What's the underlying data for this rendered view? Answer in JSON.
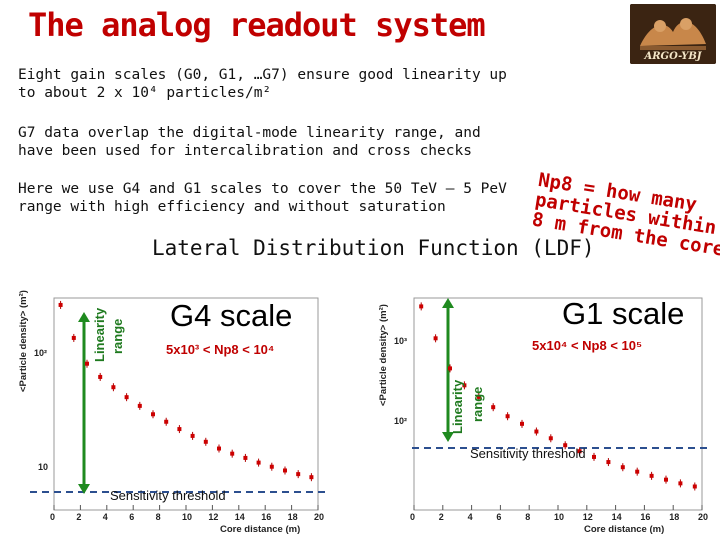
{
  "header": {
    "title": "The analog readout system",
    "logo_text": "ARGO-YBJ"
  },
  "text": {
    "p1": "Eight gain scales (G0, G1, …G7) ensure good linearity up to about 2 x 10⁴ particles/m²",
    "p2": "G7 data overlap the digital-mode linearity range, and have been used for intercalibration and cross checks",
    "p3": "Here we use G4 and G1 scales to cover the 50 TeV – 5 PeV range with high efficiency and without saturation",
    "np8_note": "Np8 = how many\nparticles within\n8 m from the core",
    "ldf_title": "Lateral Distribution Function (LDF)"
  },
  "plots": [
    {
      "scale_title": "G4 scale",
      "range_text": "5x10³ < Np8 < 10⁴",
      "linearity_label_1": "Linearity",
      "linearity_label_2": "range",
      "sensitivity_label": "Sensitivity threshold",
      "ylabel": "<Particle density> (m²)",
      "xlabel": "Core distance (m)",
      "yticks": [
        "10²",
        "10"
      ],
      "xticks": [
        "0",
        "2",
        "4",
        "6",
        "8",
        "10",
        "12",
        "14",
        "16",
        "18",
        "20"
      ]
    },
    {
      "scale_title": "G1 scale",
      "range_text": "5x10⁴ < Np8 < 10⁵",
      "linearity_label_1": "Linearity",
      "linearity_label_2": "range",
      "sensitivity_label": "Sensitivity threshold",
      "ylabel": "<Particle density> (m²)",
      "xlabel": "Core distance (m)",
      "yticks": [
        "10³",
        "10²"
      ],
      "xticks": [
        "0",
        "2",
        "4",
        "6",
        "8",
        "10",
        "12",
        "14",
        "16",
        "18",
        "20"
      ]
    }
  ],
  "chart_data": [
    {
      "type": "scatter",
      "xlabel": "Core distance (m)",
      "ylabel": "<Particle density> (m²)",
      "xlim": [
        0,
        20
      ],
      "log_y": true,
      "ylim": [
        5,
        500
      ],
      "x": [
        0.5,
        1.5,
        2.5,
        3.5,
        4.5,
        5.5,
        6.5,
        7.5,
        8.5,
        9.5,
        10.5,
        11.5,
        12.5,
        13.5,
        14.5,
        15.5,
        16.5,
        17.5,
        18.5,
        19.5
      ],
      "y": [
        430,
        210,
        120,
        90,
        72,
        58,
        48,
        40,
        34,
        29,
        25,
        22,
        19,
        17,
        15.5,
        14,
        12.8,
        11.8,
        10.9,
        10.2
      ]
    },
    {
      "type": "scatter",
      "xlabel": "Core distance (m)",
      "ylabel": "<Particle density> (m²)",
      "xlim": [
        0,
        20
      ],
      "log_y": true,
      "ylim": [
        60,
        6000
      ],
      "x": [
        0.5,
        1.5,
        2.5,
        3.5,
        4.5,
        5.5,
        6.5,
        7.5,
        8.5,
        9.5,
        10.5,
        11.5,
        12.5,
        13.5,
        14.5,
        15.5,
        16.5,
        17.5,
        18.5,
        19.5
      ],
      "y": [
        5000,
        2500,
        1300,
        900,
        700,
        560,
        460,
        390,
        330,
        285,
        245,
        215,
        190,
        170,
        152,
        138,
        126,
        116,
        107,
        100
      ]
    }
  ]
}
